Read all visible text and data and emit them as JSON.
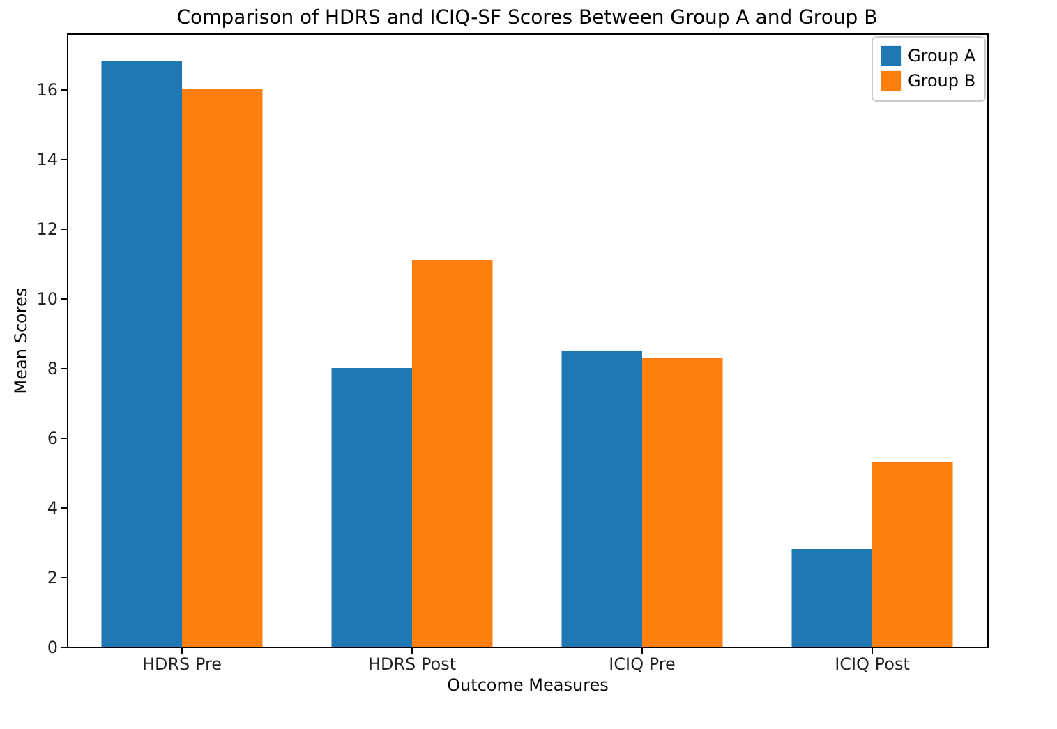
{
  "chart_data": {
    "type": "bar",
    "title": "Comparison of HDRS and ICIQ-SF Scores Between Group A and Group B",
    "xlabel": "Outcome Measures",
    "ylabel": "Mean Scores",
    "categories": [
      "HDRS Pre",
      "HDRS Post",
      "ICIQ Pre",
      "ICIQ Post"
    ],
    "series": [
      {
        "name": "Group A",
        "color": "#1f77b4",
        "values": [
          16.8,
          8.0,
          8.5,
          2.8
        ]
      },
      {
        "name": "Group B",
        "color": "#ff7f0e",
        "values": [
          16.0,
          11.1,
          8.3,
          5.3
        ]
      }
    ],
    "ylim": [
      0,
      17.6
    ],
    "yticks": [
      0,
      2,
      4,
      6,
      8,
      10,
      12,
      14,
      16
    ],
    "grid": false,
    "legend": "top right"
  }
}
